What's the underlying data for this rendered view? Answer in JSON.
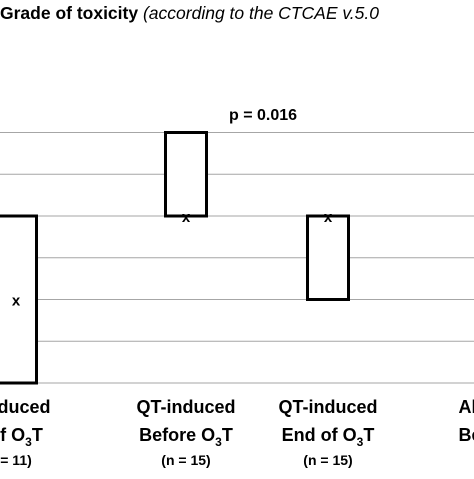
{
  "chart_data": {
    "type": "box",
    "title": "Grade of toxicity",
    "subtitle": "(according to the CTCAE v.5.0",
    "ylim": [
      0,
      7
    ],
    "gridlines": [
      1,
      2,
      3,
      4,
      5,
      6
    ],
    "grid": true,
    "legend": "none",
    "annotations": [
      {
        "text": "p = 0.016",
        "near_category": 1
      }
    ],
    "categories": [
      {
        "line1": "induced",
        "line2": "of O",
        "sub": "3",
        "line2_tail": "T",
        "n": "= 11)",
        "q1": 0,
        "q3": 4,
        "mean": 2
      },
      {
        "line1": "QT-induced",
        "line2": "Before O",
        "sub": "3",
        "line2_tail": "T",
        "n": "(n = 15)",
        "q1": 4,
        "q3": 6,
        "mean": 4
      },
      {
        "line1": "QT-induced",
        "line2": "End of O",
        "sub": "3",
        "line2_tail": "T",
        "n": "(n = 15)",
        "q1": 2,
        "q3": 4,
        "mean": 4
      },
      {
        "line1": "All",
        "line2": "Be",
        "sub": "",
        "line2_tail": "",
        "n": "",
        "q1": null,
        "q3": null,
        "mean": null
      }
    ],
    "mean_marker": "x",
    "colors": {
      "box": "#000000",
      "grid": "#a6a6a6",
      "text": "#000000"
    }
  }
}
